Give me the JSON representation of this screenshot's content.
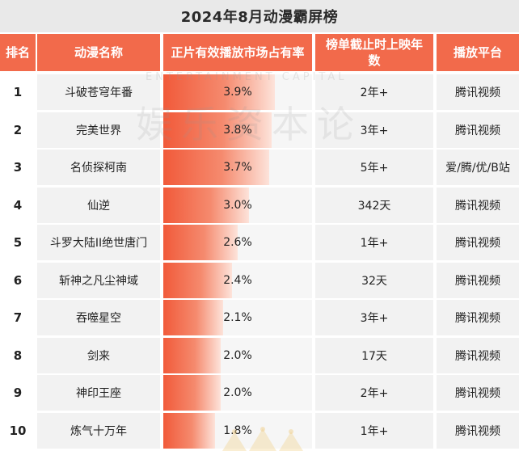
{
  "title": "2024年8月动漫霸屏榜",
  "headers": {
    "rank": "排名",
    "name": "动漫名称",
    "share": "正片有效播放市场占有率",
    "duration": "榜单截止时上映年数",
    "platform": "播放平台"
  },
  "watermark": {
    "en": "ENTERTAINMENT CAPITAL",
    "cn": "娱乐资本论"
  },
  "rows": [
    {
      "rank": "1",
      "name": "斗破苍穹年番",
      "share": "3.9%",
      "share_value": 3.9,
      "duration": "2年+",
      "platform": "腾讯视频"
    },
    {
      "rank": "2",
      "name": "完美世界",
      "share": "3.8%",
      "share_value": 3.8,
      "duration": "3年+",
      "platform": "腾讯视频"
    },
    {
      "rank": "3",
      "name": "名侦探柯南",
      "share": "3.7%",
      "share_value": 3.7,
      "duration": "5年+",
      "platform": "爱/腾/优/B站"
    },
    {
      "rank": "4",
      "name": "仙逆",
      "share": "3.0%",
      "share_value": 3.0,
      "duration": "342天",
      "platform": "腾讯视频"
    },
    {
      "rank": "5",
      "name": "斗罗大陆II绝世唐门",
      "share": "2.6%",
      "share_value": 2.6,
      "duration": "1年+",
      "platform": "腾讯视频"
    },
    {
      "rank": "6",
      "name": "斩神之凡尘神域",
      "share": "2.4%",
      "share_value": 2.4,
      "duration": "32天",
      "platform": "腾讯视频"
    },
    {
      "rank": "7",
      "name": "吞噬星空",
      "share": "2.1%",
      "share_value": 2.1,
      "duration": "3年+",
      "platform": "腾讯视频"
    },
    {
      "rank": "8",
      "name": "剑来",
      "share": "2.0%",
      "share_value": 2.0,
      "duration": "17天",
      "platform": "腾讯视频"
    },
    {
      "rank": "9",
      "name": "神印王座",
      "share": "2.0%",
      "share_value": 2.0,
      "duration": "2年+",
      "platform": "腾讯视频"
    },
    {
      "rank": "10",
      "name": "炼气十万年",
      "share": "1.8%",
      "share_value": 1.8,
      "duration": "1年+",
      "platform": "腾讯视频"
    }
  ]
}
